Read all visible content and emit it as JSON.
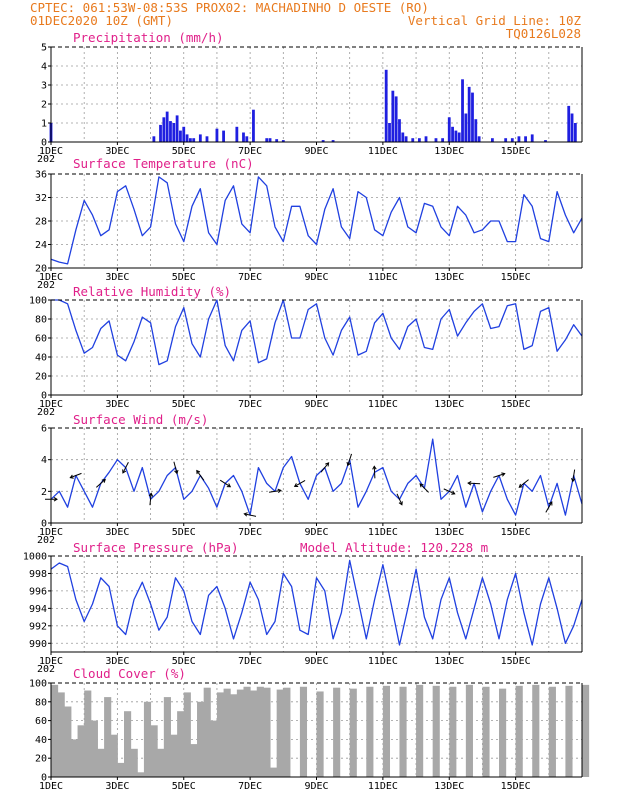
{
  "header": {
    "line1": "CPTEC:  061:53W-08:53S  PROX02: MACHADINHO D OESTE (RO)",
    "line2_left": "01DEC2020 10Z (GMT)",
    "line2_right": "Vertical Grid Line: 10Z",
    "line3_right": "TQ0126L028"
  },
  "x_axis": {
    "ticks": [
      "1DEC",
      "3DEC",
      "5DEC",
      "7DEC",
      "9DEC",
      "11DEC",
      "13DEC",
      "15DEC"
    ],
    "year_stub": "202"
  },
  "colors": {
    "header": "#e87a1e",
    "panel_title": "#e0208a",
    "precipitation": "#1f1fe0",
    "line": "#2040e0",
    "wind": "#000000",
    "cloud": "#a8a8a8",
    "grid": "#9a9a9a"
  },
  "chart_data": [
    {
      "type": "bar",
      "title": "Precipitation (mm/h)",
      "ylim": [
        0,
        5
      ],
      "yticks": [
        "0",
        "1",
        "2",
        "3",
        "4",
        "5"
      ],
      "x": [
        0,
        3.1,
        3.3,
        3.4,
        3.5,
        3.6,
        3.7,
        3.8,
        3.9,
        4.0,
        4.1,
        4.2,
        4.3,
        4.5,
        4.7,
        5.0,
        5.2,
        5.6,
        5.8,
        5.9,
        6.1,
        6.5,
        6.6,
        6.8,
        7.0,
        8.2,
        8.5,
        10.1,
        10.2,
        10.3,
        10.4,
        10.5,
        10.6,
        10.7,
        10.9,
        11.1,
        11.3,
        11.6,
        11.8,
        12.0,
        12.1,
        12.2,
        12.3,
        12.4,
        12.5,
        12.6,
        12.7,
        12.8,
        12.9,
        13.3,
        13.7,
        13.9,
        14.1,
        14.3,
        14.5,
        14.9,
        15.6,
        15.7,
        15.8
      ],
      "values": [
        1.0,
        0.3,
        0.9,
        1.3,
        1.6,
        1.1,
        1.0,
        1.4,
        0.6,
        0.8,
        0.4,
        0.2,
        0.2,
        0.4,
        0.3,
        0.7,
        0.6,
        0.8,
        0.5,
        0.3,
        1.7,
        0.2,
        0.2,
        0.15,
        0.1,
        0.1,
        0.1,
        3.8,
        1.0,
        2.7,
        2.4,
        1.2,
        0.5,
        0.3,
        0.2,
        0.2,
        0.3,
        0.2,
        0.2,
        1.3,
        0.8,
        0.6,
        0.5,
        3.3,
        1.5,
        2.9,
        2.6,
        1.2,
        0.3,
        0.2,
        0.2,
        0.2,
        0.3,
        0.3,
        0.4,
        0.1,
        1.9,
        1.5,
        1.0
      ]
    },
    {
      "type": "line",
      "title": "Surface Temperature (nC)",
      "ylim": [
        20,
        36
      ],
      "yticks": [
        "20",
        "24",
        "28",
        "32",
        "36"
      ],
      "x": [
        0,
        0.25,
        0.5,
        0.75,
        1.0,
        1.25,
        1.5,
        1.75,
        2.0,
        2.25,
        2.5,
        2.75,
        3.0,
        3.25,
        3.5,
        3.75,
        4.0,
        4.25,
        4.5,
        4.75,
        5.0,
        5.25,
        5.5,
        5.75,
        6.0,
        6.25,
        6.5,
        6.75,
        7.0,
        7.25,
        7.5,
        7.75,
        8.0,
        8.25,
        8.5,
        8.75,
        9.0,
        9.25,
        9.5,
        9.75,
        10.0,
        10.25,
        10.5,
        10.75,
        11.0,
        11.25,
        11.5,
        11.75,
        12.0,
        12.25,
        12.5,
        12.75,
        13.0,
        13.25,
        13.5,
        13.75,
        14.0,
        14.25,
        14.5,
        14.75,
        15.0,
        15.25,
        15.5,
        15.75,
        16.0
      ],
      "values": [
        21.5,
        21.0,
        20.7,
        26.5,
        31.5,
        29.0,
        25.5,
        26.5,
        33.0,
        34.0,
        30.0,
        25.5,
        27.0,
        35.5,
        34.5,
        27.5,
        24.5,
        30.5,
        33.5,
        26.0,
        24.0,
        31.5,
        34.0,
        27.5,
        26.0,
        35.5,
        34.0,
        27.0,
        24.5,
        30.5,
        30.5,
        25.5,
        24.0,
        30.0,
        33.5,
        27.0,
        25.0,
        33.0,
        32.0,
        26.5,
        25.5,
        29.5,
        32.0,
        27.0,
        26.0,
        31.0,
        30.5,
        27.0,
        25.5,
        30.5,
        29.0,
        26.0,
        26.5,
        28.0,
        28.0,
        24.5,
        24.5,
        32.5,
        30.5,
        25.0,
        24.5,
        33.0,
        29.0,
        26.0,
        28.5
      ]
    },
    {
      "type": "line",
      "title": "Relative Humidity (%)",
      "ylim": [
        0,
        100
      ],
      "yticks": [
        "0",
        "20",
        "40",
        "60",
        "80",
        "100"
      ],
      "x": [
        0,
        0.25,
        0.5,
        0.75,
        1.0,
        1.25,
        1.5,
        1.75,
        2.0,
        2.25,
        2.5,
        2.75,
        3.0,
        3.25,
        3.5,
        3.75,
        4.0,
        4.25,
        4.5,
        4.75,
        5.0,
        5.25,
        5.5,
        5.75,
        6.0,
        6.25,
        6.5,
        6.75,
        7.0,
        7.25,
        7.5,
        7.75,
        8.0,
        8.25,
        8.5,
        8.75,
        9.0,
        9.25,
        9.5,
        9.75,
        10.0,
        10.25,
        10.5,
        10.75,
        11.0,
        11.25,
        11.5,
        11.75,
        12.0,
        12.25,
        12.5,
        12.75,
        13.0,
        13.25,
        13.5,
        13.75,
        14.0,
        14.25,
        14.5,
        14.75,
        15.0,
        15.25,
        15.5,
        15.75,
        16.0
      ],
      "values": [
        100,
        100,
        96,
        68,
        44,
        50,
        70,
        78,
        42,
        36,
        56,
        82,
        76,
        32,
        36,
        72,
        92,
        54,
        40,
        80,
        100,
        52,
        36,
        68,
        78,
        34,
        38,
        76,
        100,
        60,
        60,
        90,
        96,
        60,
        42,
        68,
        82,
        42,
        46,
        76,
        86,
        60,
        48,
        72,
        80,
        50,
        48,
        80,
        90,
        62,
        76,
        88,
        96,
        70,
        72,
        94,
        96,
        48,
        52,
        88,
        92,
        46,
        58,
        74,
        62
      ]
    },
    {
      "type": "line",
      "title": "Surface Wind (m/s)",
      "ylim": [
        0,
        6
      ],
      "yticks": [
        "0",
        "2",
        "4",
        "6"
      ],
      "x": [
        0,
        0.25,
        0.5,
        0.75,
        1.0,
        1.25,
        1.5,
        1.75,
        2.0,
        2.25,
        2.5,
        2.75,
        3.0,
        3.25,
        3.5,
        3.75,
        4.0,
        4.25,
        4.5,
        4.75,
        5.0,
        5.25,
        5.5,
        5.75,
        6.0,
        6.25,
        6.5,
        6.75,
        7.0,
        7.25,
        7.5,
        7.75,
        8.0,
        8.25,
        8.5,
        8.75,
        9.0,
        9.25,
        9.5,
        9.75,
        10.0,
        10.25,
        10.5,
        10.75,
        11.0,
        11.25,
        11.5,
        11.75,
        12.0,
        12.25,
        12.5,
        12.75,
        13.0,
        13.25,
        13.5,
        13.75,
        14.0,
        14.25,
        14.5,
        14.75,
        15.0,
        15.25,
        15.5,
        15.75,
        16.0
      ],
      "values": [
        1.5,
        2.0,
        1.0,
        3.0,
        2.0,
        1.0,
        2.5,
        3.2,
        4.0,
        3.5,
        2.0,
        3.5,
        1.5,
        2.0,
        3.0,
        3.5,
        1.5,
        2.0,
        3.0,
        2.2,
        1.0,
        2.5,
        3.0,
        2.0,
        0.5,
        3.5,
        2.5,
        2.0,
        3.5,
        4.2,
        2.5,
        1.5,
        3.0,
        3.5,
        2.0,
        2.5,
        4.0,
        1.0,
        2.0,
        3.2,
        3.5,
        2.0,
        1.5,
        2.5,
        3.0,
        2.2,
        5.3,
        1.5,
        2.0,
        3.0,
        1.0,
        2.5,
        0.7,
        2.0,
        3.0,
        1.5,
        0.5,
        2.5,
        2.0,
        3.0,
        1.0,
        2.5,
        0.5,
        3.0,
        1.2
      ]
    },
    {
      "type": "line",
      "title": "Surface Pressure (hPa)",
      "subtitle": "Model Altitude: 120.228  m",
      "ylim": [
        989,
        1000
      ],
      "yticks": [
        "990",
        "992",
        "994",
        "996",
        "998",
        "1000"
      ],
      "x": [
        0,
        0.25,
        0.5,
        0.75,
        1.0,
        1.25,
        1.5,
        1.75,
        2.0,
        2.25,
        2.5,
        2.75,
        3.0,
        3.25,
        3.5,
        3.75,
        4.0,
        4.25,
        4.5,
        4.75,
        5.0,
        5.25,
        5.5,
        5.75,
        6.0,
        6.25,
        6.5,
        6.75,
        7.0,
        7.25,
        7.5,
        7.75,
        8.0,
        8.25,
        8.5,
        8.75,
        9.0,
        9.25,
        9.5,
        9.75,
        10.0,
        10.25,
        10.5,
        10.75,
        11.0,
        11.25,
        11.5,
        11.75,
        12.0,
        12.25,
        12.5,
        12.75,
        13.0,
        13.25,
        13.5,
        13.75,
        14.0,
        14.25,
        14.5,
        14.75,
        15.0,
        15.25,
        15.5,
        15.75,
        16.0
      ],
      "values": [
        998.5,
        999.2,
        998.8,
        995.0,
        992.5,
        994.5,
        997.5,
        996.5,
        992.0,
        991.0,
        995.0,
        997.0,
        994.5,
        991.5,
        993.0,
        997.5,
        996.0,
        992.5,
        991.0,
        995.5,
        996.5,
        994.0,
        990.5,
        993.5,
        997.0,
        995.0,
        991.0,
        992.5,
        998.0,
        996.5,
        991.5,
        991.0,
        997.5,
        996.0,
        990.5,
        993.5,
        999.5,
        995.0,
        990.5,
        995.0,
        999.0,
        994.5,
        989.8,
        994.0,
        998.5,
        993.0,
        990.5,
        995.0,
        997.5,
        993.5,
        990.5,
        994.0,
        997.5,
        994.5,
        990.5,
        995.0,
        998.0,
        993.5,
        989.8,
        994.5,
        997.5,
        994.0,
        990.0,
        992.0,
        995.0
      ]
    },
    {
      "type": "area",
      "title": "Cloud Cover (%)",
      "ylim": [
        0,
        100
      ],
      "yticks": [
        "0",
        "20",
        "40",
        "60",
        "80",
        "100"
      ],
      "x": [
        0,
        0.2,
        0.4,
        0.6,
        0.8,
        1.0,
        1.2,
        1.4,
        1.6,
        1.8,
        2.0,
        2.2,
        2.4,
        2.6,
        2.8,
        3.0,
        3.2,
        3.4,
        3.6,
        3.8,
        4.0,
        4.2,
        4.4,
        4.6,
        4.8,
        5.0,
        5.2,
        5.4,
        5.6,
        5.8,
        6.0,
        6.2,
        6.4,
        6.6,
        6.8,
        7.0,
        7.5,
        8.0,
        8.5,
        9.0,
        9.5,
        10.0,
        10.5,
        11.0,
        11.5,
        12.0,
        12.5,
        13.0,
        13.5,
        14.0,
        14.5,
        15.0,
        15.5,
        16.0
      ],
      "values": [
        98,
        90,
        75,
        40,
        55,
        92,
        60,
        30,
        85,
        45,
        15,
        70,
        30,
        5,
        80,
        55,
        30,
        85,
        45,
        70,
        90,
        35,
        80,
        95,
        60,
        90,
        94,
        88,
        93,
        96,
        92,
        96,
        95,
        10,
        93,
        95,
        96,
        91,
        95,
        94,
        96,
        97,
        96,
        98,
        97,
        96,
        98,
        96,
        94,
        97,
        98,
        96,
        97,
        98
      ]
    }
  ]
}
